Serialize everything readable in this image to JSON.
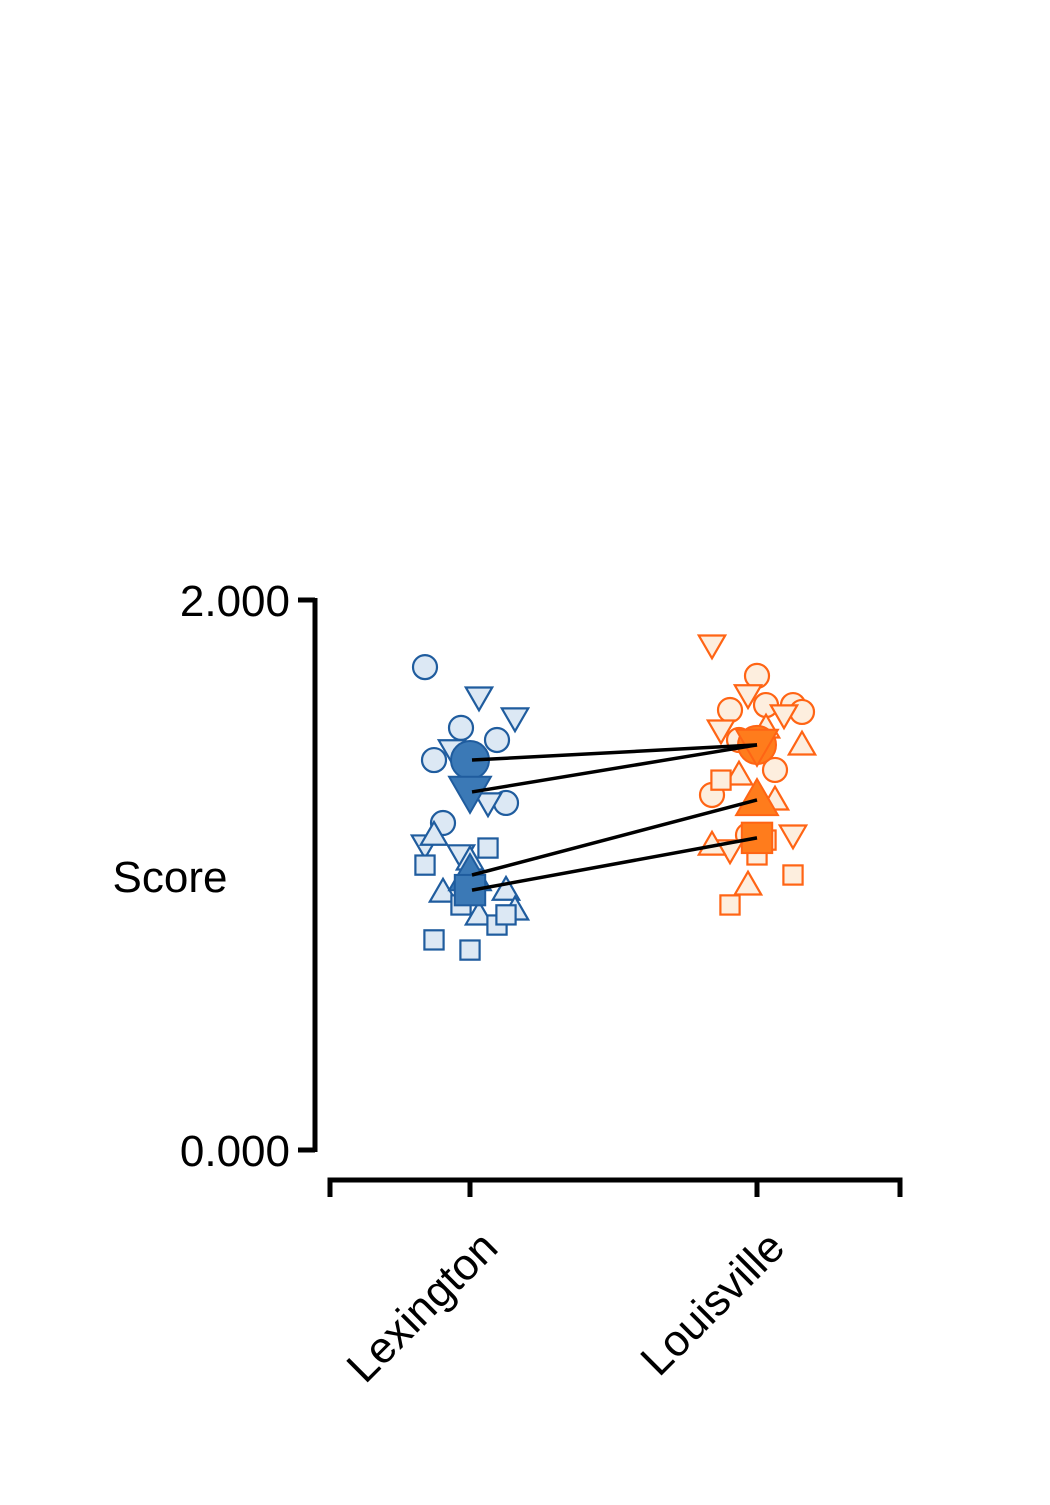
{
  "chart_data": {
    "type": "superplot",
    "y_label": "Score",
    "categories": [
      "Lexington",
      "Louisville"
    ],
    "colors": [
      {
        "edge": "#1f5c9e",
        "fill": "#dce8f4",
        "mean": "#3b79b6"
      },
      {
        "edge": "#ff6414",
        "fill": "#fdeede",
        "mean": "#ff7c1c"
      }
    ],
    "ylim": [
      0,
      2
    ],
    "yticks": [
      {
        "value": 0,
        "label": "0.000"
      },
      {
        "value": 2,
        "label": "2.000"
      }
    ],
    "series": [
      {
        "marker": "circle",
        "values": [
          1.418,
          1.473
        ],
        "points": [
          [
            1.756,
            1.535,
            1.491,
            1.418,
            1.327,
            1.262,
            1.189
          ],
          [
            1.724,
            1.618,
            1.6,
            1.618,
            1.593,
            1.491,
            1.382,
            1.291,
            1.145
          ]
        ]
      },
      {
        "marker": "triangle-down",
        "values": [
          1.302,
          1.473
        ],
        "points": [
          [
            1.647,
            1.571,
            1.455,
            1.262,
            1.109,
            1.073
          ],
          [
            1.836,
            1.655,
            1.582,
            1.527,
            1.491,
            1.145,
            1.091
          ]
        ]
      },
      {
        "marker": "triangle-up",
        "values": [
          1.0,
          1.273
        ],
        "points": [
          [
            1.145,
            1.055,
            0.945,
            0.938,
            0.855,
            0.873
          ],
          [
            1.535,
            1.473,
            1.364,
            1.273,
            1.109,
            0.964
          ]
        ]
      },
      {
        "marker": "square",
        "values": [
          0.945,
          1.135
        ],
        "points": [
          [
            1.098,
            1.036,
            0.891,
            0.818,
            0.764,
            0.727,
            0.855
          ],
          [
            1.345,
            1.073,
            1.0,
            0.891,
            1.127
          ]
        ]
      }
    ]
  }
}
